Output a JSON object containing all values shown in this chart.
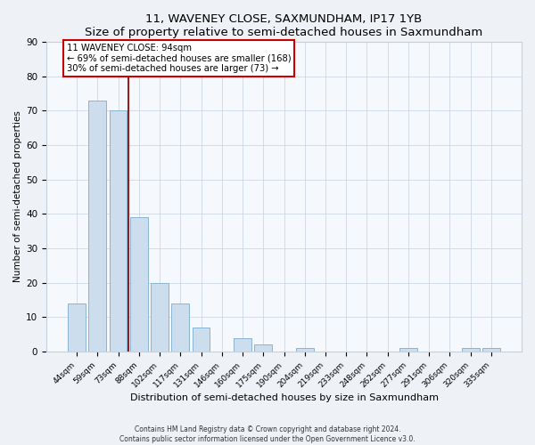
{
  "title": "11, WAVENEY CLOSE, SAXMUNDHAM, IP17 1YB",
  "subtitle": "Size of property relative to semi-detached houses in Saxmundham",
  "xlabel": "Distribution of semi-detached houses by size in Saxmundham",
  "ylabel": "Number of semi-detached properties",
  "categories": [
    "44sqm",
    "59sqm",
    "73sqm",
    "88sqm",
    "102sqm",
    "117sqm",
    "131sqm",
    "146sqm",
    "160sqm",
    "175sqm",
    "190sqm",
    "204sqm",
    "219sqm",
    "233sqm",
    "248sqm",
    "262sqm",
    "277sqm",
    "291sqm",
    "306sqm",
    "320sqm",
    "335sqm"
  ],
  "values": [
    14,
    73,
    70,
    39,
    20,
    14,
    7,
    0,
    4,
    2,
    0,
    1,
    0,
    0,
    0,
    0,
    1,
    0,
    0,
    1,
    1
  ],
  "bar_color": "#ccdded",
  "bar_edge_color": "#8ab4d4",
  "vline_x": 3.0,
  "vline_color": "#990000",
  "annotation_title": "11 WAVENEY CLOSE: 94sqm",
  "annotation_line2": "← 69% of semi-detached houses are smaller (168)",
  "annotation_line3": "30% of semi-detached houses are larger (73) →",
  "annotation_box_color": "#cc0000",
  "ylim": [
    0,
    90
  ],
  "yticks": [
    0,
    10,
    20,
    30,
    40,
    50,
    60,
    70,
    80,
    90
  ],
  "footer_line1": "Contains HM Land Registry data © Crown copyright and database right 2024.",
  "footer_line2": "Contains public sector information licensed under the Open Government Licence v3.0.",
  "bg_color": "#eef2f7",
  "plot_bg_color": "#f5f8fc",
  "grid_color": "#c5d0de"
}
